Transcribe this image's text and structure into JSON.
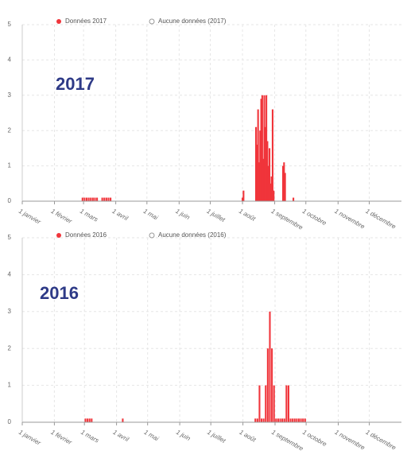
{
  "chart_data": [
    {
      "type": "bar",
      "annotation": "2017",
      "series": [
        {
          "name": "Données 2017",
          "color": "#f0353b",
          "x": [
            59,
            61,
            63,
            65,
            67,
            69,
            71,
            73,
            78,
            80,
            82,
            84,
            86,
            213,
            214,
            226,
            227,
            228,
            229,
            230,
            231,
            232,
            233,
            234,
            235,
            236,
            237,
            238,
            239,
            240,
            241,
            242,
            243,
            252,
            253,
            254,
            262
          ],
          "values": [
            0.1,
            0.1,
            0.1,
            0.1,
            0.1,
            0.1,
            0.1,
            0.1,
            0.1,
            0.1,
            0.1,
            0.1,
            0.1,
            0.1,
            0.3,
            2.1,
            1.6,
            2.6,
            1.1,
            2.0,
            2.9,
            3.0,
            1.2,
            3.0,
            2.1,
            3.0,
            1.7,
            1.0,
            1.5,
            0.5,
            0.7,
            2.6,
            0.3,
            1.0,
            1.1,
            0.8,
            0.1
          ]
        },
        {
          "name": "Aucune données (2017)",
          "color": "#999999",
          "x": [],
          "values": []
        }
      ],
      "xlim": [
        1,
        366
      ],
      "ylim": [
        0,
        5
      ],
      "yticks": [
        0,
        1,
        2,
        3,
        4,
        5
      ],
      "xticks": [
        {
          "value": 1,
          "label": "1 janvier"
        },
        {
          "value": 32,
          "label": "1 février"
        },
        {
          "value": 60,
          "label": "1 mars"
        },
        {
          "value": 91,
          "label": "1 avril"
        },
        {
          "value": 121,
          "label": "1 mai"
        },
        {
          "value": 152,
          "label": "1 juin"
        },
        {
          "value": 182,
          "label": "1 juillet"
        },
        {
          "value": 213,
          "label": "1 août"
        },
        {
          "value": 244,
          "label": "1 septembre"
        },
        {
          "value": 274,
          "label": "1 octobre"
        },
        {
          "value": 305,
          "label": "1 novembre"
        },
        {
          "value": 335,
          "label": "1 décembre"
        }
      ],
      "grid": true
    },
    {
      "type": "bar",
      "annotation": "2016",
      "series": [
        {
          "name": "Données 2016",
          "color": "#f0353b",
          "x": [
            62,
            64,
            66,
            68,
            98,
            226,
            228,
            230,
            232,
            234,
            236,
            238,
            240,
            242,
            244,
            246,
            248,
            250,
            252,
            254,
            256,
            258,
            260,
            262,
            264,
            266,
            268,
            270,
            272,
            274
          ],
          "values": [
            0.1,
            0.1,
            0.1,
            0.1,
            0.1,
            0.1,
            0.1,
            1.0,
            0.1,
            0.1,
            1.0,
            2.0,
            3.0,
            2.0,
            1.0,
            0.1,
            0.1,
            0.1,
            0.1,
            0.1,
            1.0,
            1.0,
            0.1,
            0.1,
            0.1,
            0.1,
            0.1,
            0.1,
            0.1,
            0.1
          ]
        },
        {
          "name": "Aucune données (2016)",
          "color": "#999999",
          "x": [],
          "values": []
        }
      ],
      "xlim": [
        1,
        367
      ],
      "ylim": [
        0,
        5
      ],
      "yticks": [
        0,
        1,
        2,
        3,
        4,
        5
      ],
      "xticks": [
        {
          "value": 1,
          "label": "1 janvier"
        },
        {
          "value": 32,
          "label": "1 février"
        },
        {
          "value": 61,
          "label": "1 mars"
        },
        {
          "value": 92,
          "label": "1 avril"
        },
        {
          "value": 122,
          "label": "1 mai"
        },
        {
          "value": 153,
          "label": "1 juin"
        },
        {
          "value": 183,
          "label": "1 juillet"
        },
        {
          "value": 214,
          "label": "1 août"
        },
        {
          "value": 245,
          "label": "1 septembre"
        },
        {
          "value": 275,
          "label": "1 octobre"
        },
        {
          "value": 306,
          "label": "1 novembre"
        },
        {
          "value": 336,
          "label": "1 décembre"
        }
      ],
      "grid": true
    }
  ]
}
